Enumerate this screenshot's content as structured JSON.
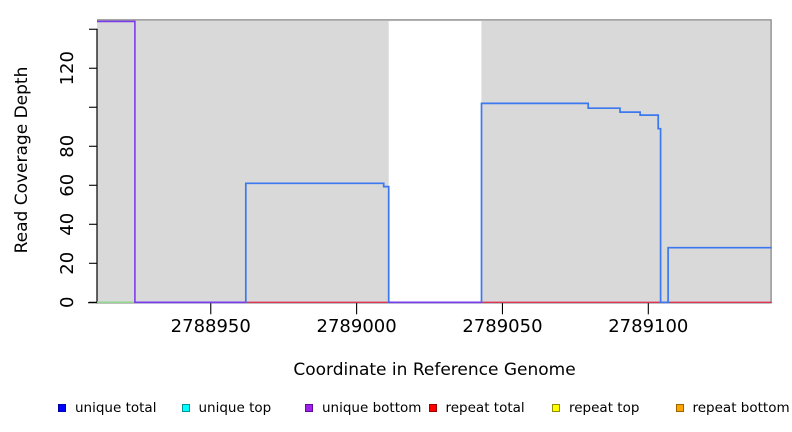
{
  "chart_data": {
    "type": "line",
    "title": "",
    "xlabel": "Coordinate in Reference Genome",
    "ylabel": "Read Coverage Depth",
    "x_range": [
      2788911,
      2789142.3
    ],
    "y_range": [
      0,
      145.1
    ],
    "x_ticks": [
      {
        "value": 2788950,
        "label": "2788950"
      },
      {
        "value": 2789000,
        "label": "2789000"
      },
      {
        "value": 2789050,
        "label": "2789050"
      },
      {
        "value": 2789100,
        "label": "2789100"
      }
    ],
    "y_ticks": [
      {
        "value": 0,
        "label": "0"
      },
      {
        "value": 20,
        "label": "20"
      },
      {
        "value": 40,
        "label": "40"
      },
      {
        "value": 60,
        "label": "60"
      },
      {
        "value": 80,
        "label": "80"
      },
      {
        "value": 100,
        "label": ""
      },
      {
        "value": 120,
        "label": "120"
      },
      {
        "value": 140,
        "label": ""
      }
    ],
    "grid": false,
    "gap_region": [
      2789011,
      2789042.8
    ],
    "colors": {
      "panel": "#d9d9d9",
      "panel_border": "#8c8c8c",
      "axis": "#000000",
      "gap_fill": "#ffffff"
    },
    "series": [
      {
        "name": "repeat-total",
        "color": "#DD3355",
        "width": 1.4,
        "points": [
          [
            2788911,
            0
          ],
          [
            2789142.3,
            0
          ]
        ]
      },
      {
        "name": "zero-green-segment",
        "color": "#90D890",
        "width": 1.5,
        "points": [
          [
            2788911,
            0
          ],
          [
            2788924,
            0
          ]
        ]
      },
      {
        "name": "unique-total",
        "color": "#3B78F0",
        "width": 1.7,
        "points": [
          [
            2788924,
            0
          ],
          [
            2788962,
            0
          ],
          [
            2788962,
            61
          ],
          [
            2789009.3,
            61
          ],
          [
            2789009.3,
            59.3
          ],
          [
            2789011,
            59.3
          ],
          [
            2789011,
            0
          ],
          [
            2789042.8,
            0
          ],
          [
            2789042.8,
            102
          ],
          [
            2789079.4,
            102
          ],
          [
            2789079.4,
            99.5
          ],
          [
            2789090.3,
            99.5
          ],
          [
            2789090.3,
            97.5
          ],
          [
            2789097.2,
            97.5
          ],
          [
            2789097.2,
            96
          ],
          [
            2789103.4,
            96
          ],
          [
            2789103.4,
            89
          ],
          [
            2789104.2,
            89
          ],
          [
            2789104.2,
            0
          ],
          [
            2789106.8,
            0
          ],
          [
            2789106.8,
            28
          ],
          [
            2789142.3,
            28
          ]
        ]
      },
      {
        "name": "unique-bottom",
        "color": "#7B3BEC",
        "width": 1.6,
        "points": [
          [
            2788911,
            144
          ],
          [
            2788924,
            144
          ],
          [
            2788924,
            0
          ],
          [
            2788962,
            0
          ]
        ]
      },
      {
        "name": "unique-bottom-gap-zero",
        "color": "#7B3BEC",
        "width": 1.6,
        "points": [
          [
            2789011,
            0
          ],
          [
            2789042.8,
            0
          ]
        ]
      }
    ]
  },
  "legend": {
    "items": [
      {
        "label": "unique total",
        "fill": "#0000FF",
        "border": "#0000A8"
      },
      {
        "label": "unique top",
        "fill": "#00FFFF",
        "border": "#009999"
      },
      {
        "label": "unique bottom",
        "fill": "#A020F0",
        "border": "#5E0E91"
      },
      {
        "label": "repeat total",
        "fill": "#FF0000",
        "border": "#990000"
      },
      {
        "label": "repeat top",
        "fill": "#FFFF00",
        "border": "#8F8F00"
      },
      {
        "label": "repeat bottom",
        "fill": "#FFA500",
        "border": "#9A6400"
      }
    ]
  }
}
